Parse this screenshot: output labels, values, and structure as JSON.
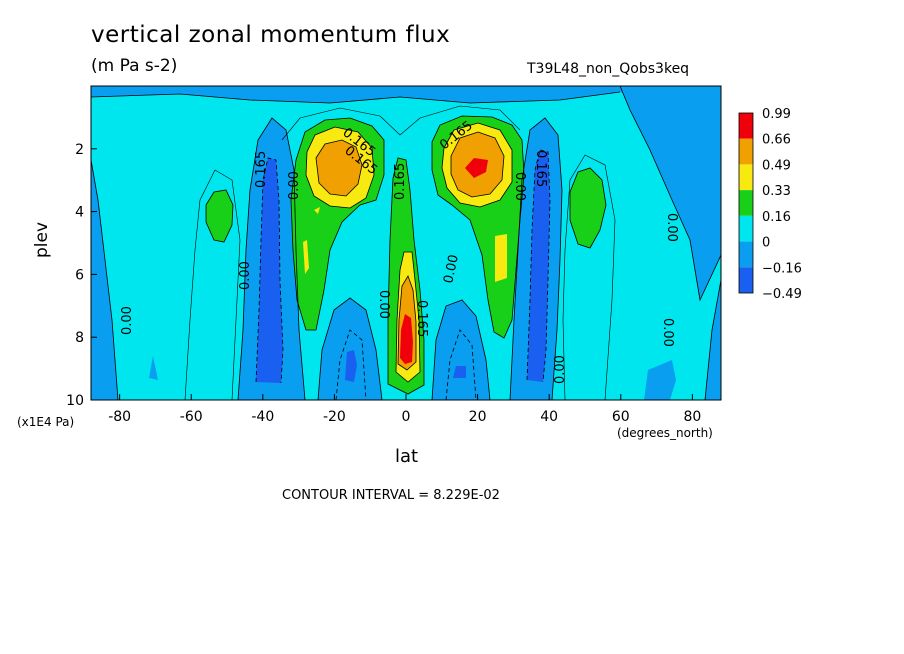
{
  "title": "vertical zonal momentum flux",
  "units": "(m Pa s-2)",
  "run_label": "T39L48_non_Qobs3keq",
  "contour_interval": "CONTOUR INTERVAL = 8.229E-02",
  "chart_data": {
    "type": "heatmap",
    "title": "vertical zonal momentum flux",
    "subtitle": "(m Pa s-2)",
    "xlabel": "lat",
    "x_unit": "(degrees_north)",
    "ylabel": "plev",
    "y_unit": "(x1E4 Pa)",
    "xlim": [
      -88,
      88
    ],
    "ylim": [
      10,
      0
    ],
    "x_ticks": [
      -80,
      -60,
      -40,
      -20,
      0,
      20,
      40,
      60,
      80
    ],
    "x_tick_labels": [
      "-80",
      "-60",
      "-40",
      "-20",
      "0",
      "20",
      "40",
      "60",
      "80"
    ],
    "y_ticks": [
      2,
      4,
      6,
      8,
      10
    ],
    "y_tick_labels": [
      "2",
      "4",
      "6",
      "8",
      "10"
    ],
    "colorbar_levels": [
      "0.99",
      "0.66",
      "0.49",
      "0.33",
      "0.16",
      "0",
      "−0.16",
      "−0.49"
    ],
    "colorbar_colors": [
      "#f0000a",
      "#f0a000",
      "#f8ea10",
      "#18d018",
      "#00e6ee",
      "#0a9ef0",
      "#1a60f0"
    ],
    "contour_labels": [
      "0.165",
      "0.165",
      "0.165",
      "0.165",
      "0.165",
      "0.00",
      "0.00",
      "0.00",
      "0.00",
      "0.00",
      "0.00",
      "0.00",
      "0.00",
      "0.00",
      "0.165",
      "0.165"
    ],
    "regions": [
      {
        "level": "0.16",
        "lat": -18,
        "plev": 3.0,
        "peak": 0.66
      },
      {
        "level": "0.16",
        "lat": 19,
        "plev": 2.9,
        "peak": 0.99
      },
      {
        "level": "0.16",
        "lat": 0,
        "plev": 8.0,
        "peak": 0.99
      },
      {
        "level": "-0.16",
        "lat": -40,
        "plev": 6.5,
        "peak": -0.49
      },
      {
        "level": "-0.16",
        "lat": 38,
        "plev": 6.5,
        "peak": -0.49
      },
      {
        "level": "0.16",
        "lat": -53,
        "plev": 4.0,
        "peak": 0.33
      },
      {
        "level": "0.16",
        "lat": 49,
        "plev": 4.0,
        "peak": 0.33
      }
    ],
    "grid": false,
    "legend": "right"
  }
}
